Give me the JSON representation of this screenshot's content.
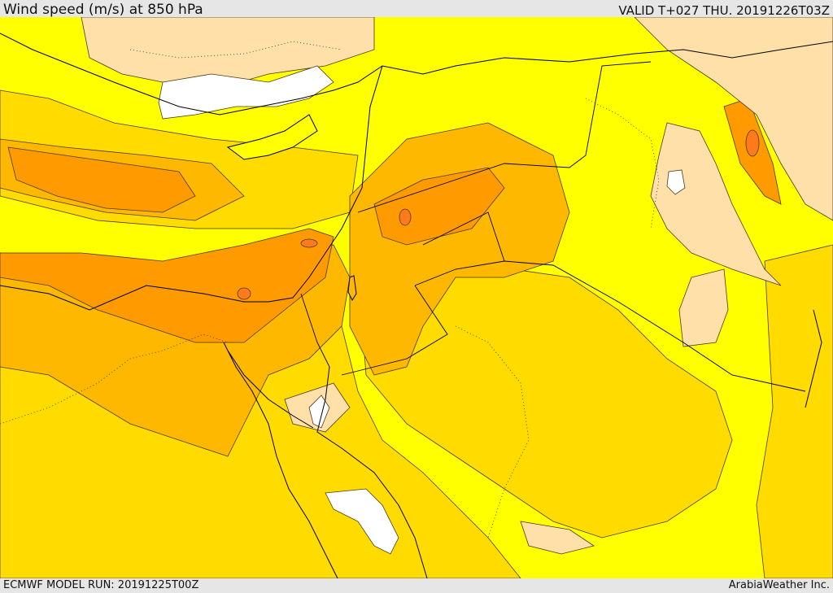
{
  "header": {
    "title": "Wind speed (m/s) at 850 hPa",
    "valid": "VALID T+027 THU. 20191226T03Z"
  },
  "footer": {
    "model_run": "ECMWF MODEL RUN: 20191225T00Z",
    "credit": "ArabiaWeather Inc."
  },
  "colors": {
    "band_0_5": "#ffffff",
    "band_5_10": "#ffe0a8",
    "band_10_15": "#ffff00",
    "band_15_20": "#ffdb00",
    "band_20_25": "#ffb800",
    "band_25_30": "#ff9a00",
    "band_30_plus": "#ff7a1a",
    "contour": "#4a3a1a",
    "border": "#000000"
  }
}
